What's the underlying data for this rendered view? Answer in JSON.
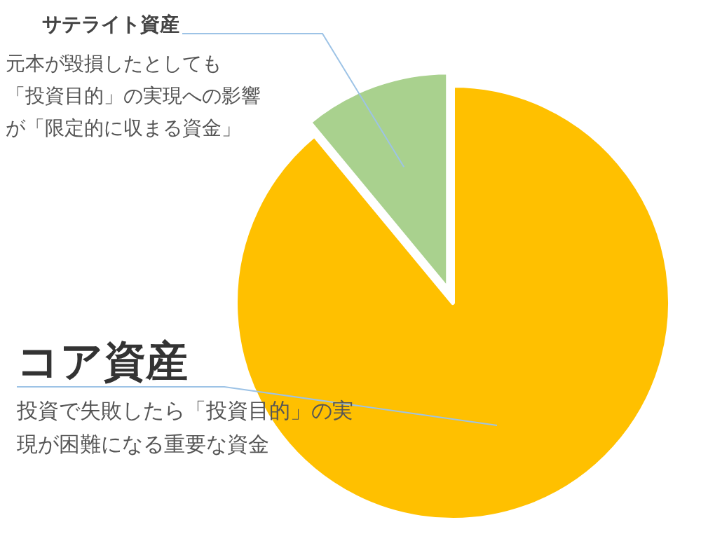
{
  "chart_data": {
    "type": "pie",
    "categories": [
      "コア資産",
      "サテライト資産"
    ],
    "values": [
      89,
      11
    ],
    "colors": [
      "#ffc000",
      "#a9d18e"
    ],
    "annotations": [
      "投資で失敗したら「投資目的」の実",
      "現が困難になる重要な資金",
      "元本が毀損したとしても",
      "「投資目的」の実現への影響",
      "が「限定的に収まる資金」"
    ]
  }
}
